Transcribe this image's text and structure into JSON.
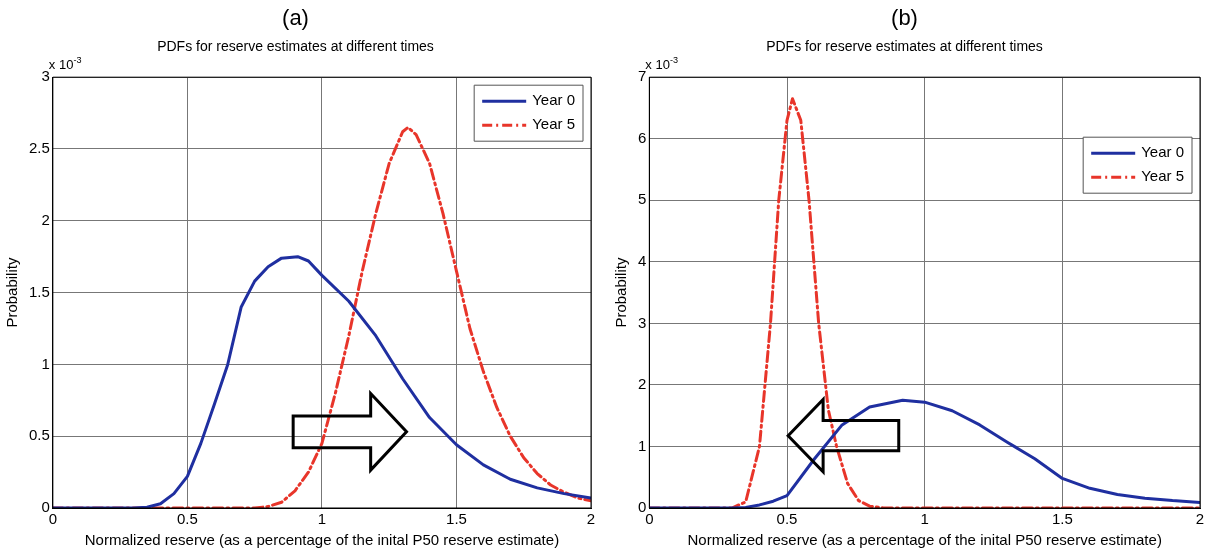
{
  "chart_data": [
    {
      "type": "line",
      "title": "(a)",
      "subtitle": "PDFs for reserve estimates at different times",
      "xlabel": "Normalized reserve (as a percentage of the inital P50 reserve estimate)",
      "ylabel": "Probability",
      "annotations": [
        "x 10$^{-3}$"
      ],
      "series": [
        {
          "name": "Year 0",
          "color": "#1f2fa0",
          "line_style": "solid",
          "x": [
            0,
            0.3,
            0.35,
            0.4,
            0.45,
            0.5,
            0.55,
            0.6,
            0.65,
            0.7,
            0.75,
            0.8,
            0.85,
            0.91,
            0.95,
            1.0,
            1.1,
            1.2,
            1.3,
            1.4,
            1.5,
            1.6,
            1.7,
            1.8,
            1.9,
            2.0
          ],
          "values": [
            0,
            0,
            0.005,
            0.03,
            0.1,
            0.22,
            0.45,
            0.72,
            1.0,
            1.4,
            1.58,
            1.68,
            1.74,
            1.75,
            1.72,
            1.62,
            1.44,
            1.2,
            0.9,
            0.63,
            0.44,
            0.3,
            0.2,
            0.14,
            0.1,
            0.07
          ]
        },
        {
          "name": "Year 5",
          "color": "#e8352a",
          "line_style": "dashed",
          "x": [
            0,
            0.75,
            0.8,
            0.85,
            0.9,
            0.95,
            1.0,
            1.05,
            1.1,
            1.15,
            1.2,
            1.25,
            1.3,
            1.32,
            1.35,
            1.4,
            1.45,
            1.5,
            1.55,
            1.6,
            1.65,
            1.7,
            1.75,
            1.8,
            1.85,
            1.9,
            1.95,
            2.0
          ],
          "values": [
            0,
            0,
            0.01,
            0.04,
            0.12,
            0.25,
            0.45,
            0.8,
            1.2,
            1.65,
            2.05,
            2.4,
            2.62,
            2.65,
            2.6,
            2.4,
            2.05,
            1.65,
            1.25,
            0.95,
            0.7,
            0.5,
            0.35,
            0.24,
            0.16,
            0.11,
            0.07,
            0.05
          ]
        }
      ],
      "xlim": [
        0,
        2
      ],
      "xticks": [
        0,
        0.5,
        1,
        1.5,
        2
      ],
      "ylim": [
        0,
        3
      ],
      "yticks": [
        0,
        0.5,
        1,
        1.5,
        2,
        2.5,
        3
      ],
      "grid": true,
      "legend": "top right",
      "marker": "none"
    },
    {
      "type": "line",
      "title": "(b)",
      "subtitle": "PDFs for reserve estimates at different times",
      "xlabel": "Normalized reserve (as a percentage of the inital P50 reserve estimate)",
      "ylabel": "Probability",
      "annotations": [
        "x 10$^{-3}$"
      ],
      "series": [
        {
          "name": "Year 0",
          "color": "#1f2fa0",
          "line_style": "solid",
          "x": [
            0,
            0.3,
            0.35,
            0.4,
            0.45,
            0.5,
            0.6,
            0.7,
            0.8,
            0.92,
            1.0,
            1.1,
            1.2,
            1.3,
            1.4,
            1.5,
            1.6,
            1.7,
            1.8,
            1.9,
            2.0
          ],
          "values": [
            0,
            0,
            0.01,
            0.05,
            0.11,
            0.2,
            0.8,
            1.35,
            1.64,
            1.75,
            1.72,
            1.58,
            1.35,
            1.07,
            0.8,
            0.48,
            0.32,
            0.22,
            0.16,
            0.12,
            0.09
          ]
        },
        {
          "name": "Year 5",
          "color": "#e8352a",
          "line_style": "dashed",
          "x": [
            0,
            0.3,
            0.35,
            0.4,
            0.44,
            0.47,
            0.5,
            0.52,
            0.55,
            0.58,
            0.615,
            0.65,
            0.68,
            0.72,
            0.76,
            0.8,
            0.85,
            2.0
          ],
          "values": [
            0,
            0,
            0.1,
            1.0,
            3.0,
            5.0,
            6.3,
            6.65,
            6.3,
            5.0,
            3.0,
            1.6,
            1.0,
            0.4,
            0.12,
            0.03,
            0,
            0
          ]
        }
      ],
      "xlim": [
        0,
        2
      ],
      "xticks": [
        0,
        0.5,
        1,
        1.5,
        2
      ],
      "ylim": [
        0,
        7
      ],
      "yticks": [
        0,
        1,
        2,
        3,
        4,
        5,
        6,
        7
      ],
      "grid": true,
      "legend": "top right",
      "marker": "none"
    }
  ]
}
